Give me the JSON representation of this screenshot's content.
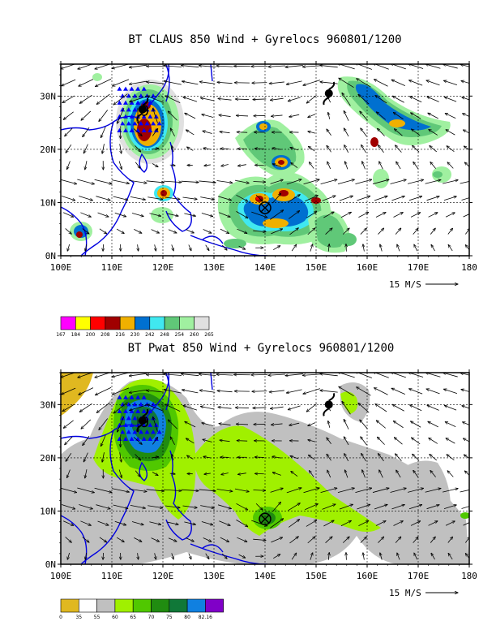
{
  "chart_data": [
    {
      "type": "map",
      "title": "BT CLAUS 850 Wind + Gyrelocs 960801/1200",
      "x_ticks": [
        "100E",
        "110E",
        "120E",
        "130E",
        "140E",
        "150E",
        "160E",
        "170E",
        "180"
      ],
      "y_ticks": [
        "0N",
        "10N",
        "20N",
        "30N"
      ],
      "xlim": [
        100,
        180
      ],
      "ylim": [
        0,
        36
      ],
      "grid": true,
      "vector_reference": "15 M/S",
      "colorbar": {
        "colors": [
          "#ff00ff",
          "#ffff00",
          "#ff0000",
          "#a00000",
          "#f0b000",
          "#0070d0",
          "#40e8f0",
          "#60c878",
          "#a0f0a0",
          "#e0e0e0"
        ],
        "labels": [
          "167",
          "184",
          "200",
          "208",
          "216",
          "230",
          "242",
          "248",
          "254",
          "260",
          "265"
        ]
      },
      "markers": [
        {
          "symbol": "typhoon",
          "label": "9",
          "lon": 116,
          "lat": 27.5
        },
        {
          "symbol": "typhoon",
          "label": "",
          "lon": 152.5,
          "lat": 30.5
        },
        {
          "symbol": "circled-x",
          "label": "",
          "lon": 140,
          "lat": 9
        }
      ]
    },
    {
      "type": "map",
      "title": "BT Pwat 850 Wind + Gyrelocs 960801/1200",
      "x_ticks": [
        "100E",
        "110E",
        "120E",
        "130E",
        "140E",
        "150E",
        "160E",
        "170E",
        "180"
      ],
      "y_ticks": [
        "0N",
        "10N",
        "20N",
        "30N"
      ],
      "xlim": [
        100,
        180
      ],
      "ylim": [
        0,
        36
      ],
      "grid": true,
      "vector_reference": "15 M/S",
      "colorbar": {
        "colors": [
          "#e0b820",
          "#ffffff",
          "#c0c0c0",
          "#a0f000",
          "#50c800",
          "#208c10",
          "#107838",
          "#1080e0",
          "#8000c8"
        ],
        "labels": [
          "0",
          "35",
          "55",
          "60",
          "65",
          "70",
          "75",
          "80",
          "82.16"
        ]
      },
      "markers": [
        {
          "symbol": "typhoon",
          "label": "9",
          "lon": 116,
          "lat": 27
        },
        {
          "symbol": "typhoon",
          "label": "",
          "lon": 152.5,
          "lat": 30
        },
        {
          "symbol": "circled-x",
          "label": "",
          "lon": 140,
          "lat": 8.5
        }
      ]
    }
  ]
}
